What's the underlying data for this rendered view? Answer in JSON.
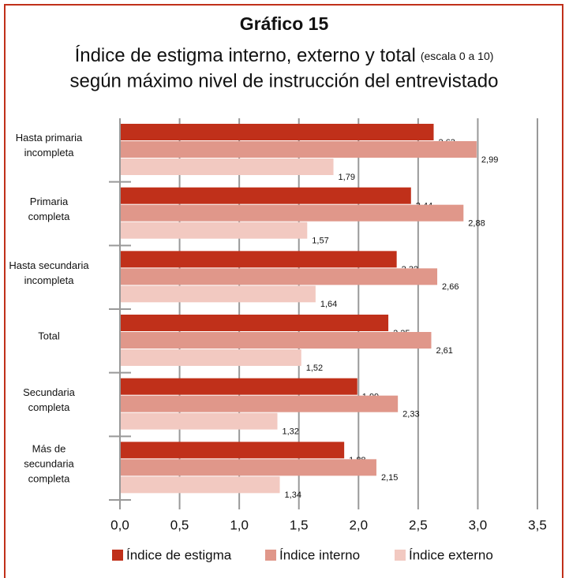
{
  "chart_data": {
    "type": "bar",
    "orientation": "horizontal",
    "title": "Gráfico 15",
    "subtitle": "Índice de estigma interno, externo y total",
    "subtitle_note": "(escala 0 a 10)",
    "subtitle_line2": "según máximo nivel de instrucción del entrevistado",
    "categories": [
      "Hasta primaria\nincompleta",
      "Primaria\ncompleta",
      "Hasta secundaria\nincompleta",
      "Total",
      "Secundaria\ncompleta",
      "Más de\nsecundaria\ncompleta"
    ],
    "series": [
      {
        "name": "Índice de estigma",
        "color": "#c0301a",
        "values": [
          2.63,
          2.44,
          2.32,
          2.25,
          1.99,
          1.88
        ],
        "value_labels": [
          "2,63",
          "2,44",
          "2,32",
          "2,25",
          "1,99",
          "1,88"
        ]
      },
      {
        "name": "Índice interno",
        "color": "#e0978a",
        "values": [
          2.99,
          2.88,
          2.66,
          2.61,
          2.33,
          2.15
        ],
        "value_labels": [
          "2,99",
          "2,88",
          "2,66",
          "2,61",
          "2,33",
          "2,15"
        ]
      },
      {
        "name": "Índice externo",
        "color": "#f2c9c1",
        "values": [
          1.79,
          1.57,
          1.64,
          1.52,
          1.32,
          1.34
        ],
        "value_labels": [
          "1,79",
          "1,57",
          "1,64",
          "1,52",
          "1,32",
          "1,34"
        ]
      }
    ],
    "xlim": [
      0,
      3.5
    ],
    "xticks": [
      {
        "value": 0,
        "label": "0,0"
      },
      {
        "value": 0.5,
        "label": "0,5"
      },
      {
        "value": 1,
        "label": "1,0"
      },
      {
        "value": 1.5,
        "label": "1,5"
      },
      {
        "value": 2,
        "label": "2,0"
      },
      {
        "value": 2.5,
        "label": "2,5"
      },
      {
        "value": 3,
        "label": "3,0"
      },
      {
        "value": 3.5,
        "label": "3,5"
      }
    ],
    "grid": true,
    "legend": "bottom"
  }
}
